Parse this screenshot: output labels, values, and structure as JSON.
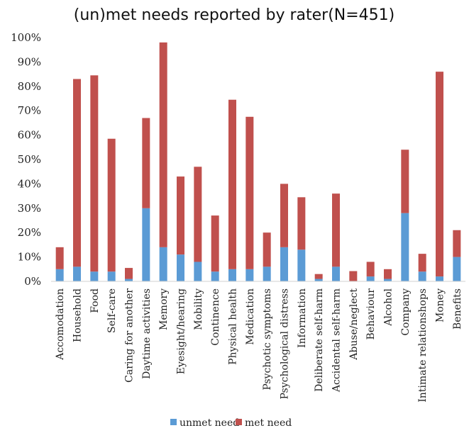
{
  "chart_data": {
    "type": "bar",
    "stacked": true,
    "title": "(un)met needs reported by rater(N=451)",
    "xlabel": "",
    "ylabel": "",
    "ylim": [
      0,
      100
    ],
    "y_ticks": [
      "0%",
      "10%",
      "20%",
      "30%",
      "40%",
      "50%",
      "60%",
      "70%",
      "80%",
      "90%",
      "100%"
    ],
    "categories": [
      "Accomodation",
      "Household",
      "Food",
      "Self-care",
      "Caring for another",
      "Daytime activities",
      "Memory",
      "Eyesight/hearing",
      "Mobility",
      "Continence",
      "Physical health",
      "Medication",
      "Psychotic symptoms",
      "Psychological distress",
      "Information",
      "Deliberate self-harm",
      "Accidental self-harm",
      "Abuse/neglect",
      "Behaviour",
      "Alcohol",
      "Company",
      "Intimate relationshops",
      "Money",
      "Benefits"
    ],
    "series": [
      {
        "name": "unmet need",
        "color": "#5b9bd5",
        "values": [
          5,
          6,
          4,
          4,
          1,
          30,
          14,
          11,
          8,
          4,
          5,
          5,
          6,
          14,
          13,
          1,
          6,
          0,
          2,
          1,
          28,
          4,
          2,
          10
        ]
      },
      {
        "name": "met need",
        "color": "#c0504d",
        "values": [
          9,
          77,
          80.5,
          54.5,
          4.5,
          37,
          84,
          32,
          39,
          23,
          69.5,
          62.5,
          14,
          26,
          21.5,
          2,
          30,
          4.2,
          6,
          4,
          26,
          7.3,
          84,
          11
        ]
      }
    ],
    "legend_position": "bottom",
    "grid": false
  }
}
